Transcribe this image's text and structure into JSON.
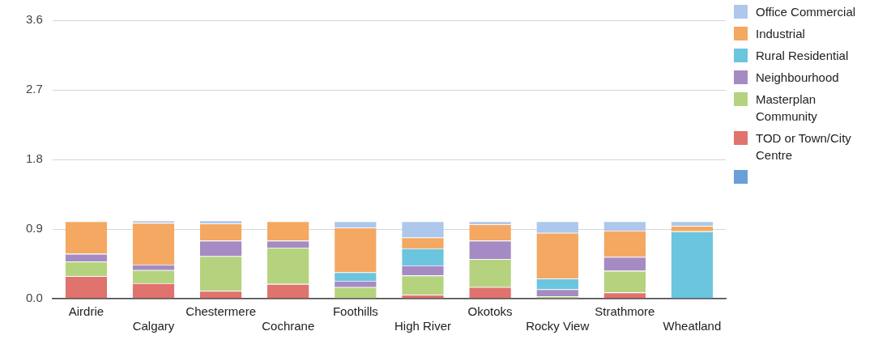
{
  "chart_data": {
    "type": "bar",
    "stacked": true,
    "categories": [
      "Airdrie",
      "Calgary",
      "Chestermere",
      "Cochrane",
      "Foothills",
      "High River",
      "Okotoks",
      "Rocky View",
      "Strathmore",
      "Wheatland"
    ],
    "ylim": [
      0,
      3.6
    ],
    "yticks": [
      {
        "value": 0,
        "label": "0.0"
      },
      0.9,
      {
        "value": 1.8,
        "label": "1.8"
      },
      2.7,
      3.6
    ],
    "grid": "y",
    "legend": "right",
    "series": [
      {
        "color": "#6a9fd8",
        "values": [
          null,
          null,
          null,
          null,
          null,
          null,
          null,
          null,
          null,
          null
        ]
      },
      {
        "name": "TOD or Town/City Centre",
        "color": "#e0736e",
        "values": [
          0.29,
          0.2,
          0.1,
          0.19,
          0,
          0.05,
          0.15,
          0,
          0.08,
          0
        ]
      },
      {
        "name": "Masterplan Community",
        "color": "#b5d37f",
        "values": [
          0.19,
          0.17,
          0.45,
          0.47,
          0.15,
          0.25,
          0.36,
          0.03,
          0.28,
          0
        ]
      },
      {
        "name": "Neighbourhood",
        "color": "#a58bc3",
        "values": [
          0.1,
          0.07,
          0.2,
          0.09,
          0.08,
          0.13,
          0.24,
          0.09,
          0.18,
          0
        ]
      },
      {
        "name": "Rural Residential",
        "color": "#6bc5de",
        "values": [
          0,
          0,
          0,
          0,
          0.11,
          0.22,
          0,
          0.14,
          0,
          0.87
        ]
      },
      {
        "name": "Industrial",
        "color": "#f4a862",
        "values": [
          0.42,
          0.54,
          0.22,
          0.25,
          0.58,
          0.14,
          0.21,
          0.59,
          0.34,
          0.07
        ]
      },
      {
        "name": "Office Commercial",
        "color": "#aec7ec",
        "values": [
          0,
          0.03,
          0.04,
          0,
          0.08,
          0.21,
          0.04,
          0.15,
          0.12,
          0.06
        ]
      }
    ]
  }
}
